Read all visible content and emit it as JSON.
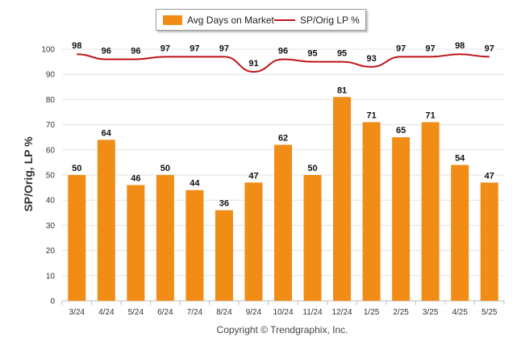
{
  "chart_data": {
    "type": "bar",
    "categories": [
      "3/24",
      "4/24",
      "5/24",
      "6/24",
      "7/24",
      "8/24",
      "9/24",
      "10/24",
      "11/24",
      "12/24",
      "1/25",
      "2/25",
      "3/25",
      "4/25",
      "5/25"
    ],
    "series": [
      {
        "name": "Avg Days on Market",
        "type": "bar",
        "color": "#f18c17",
        "values": [
          50,
          64,
          46,
          50,
          44,
          36,
          47,
          62,
          50,
          81,
          71,
          65,
          71,
          54,
          47
        ]
      },
      {
        "name": "SP/Orig LP %",
        "type": "line",
        "color": "#c0141a",
        "values": [
          98,
          96,
          96,
          97,
          97,
          97,
          91,
          96,
          95,
          95,
          93,
          97,
          97,
          98,
          97
        ]
      }
    ],
    "ylabel": "SP/Orig, LP %",
    "ylim": [
      0,
      100
    ],
    "yticks": [
      0,
      10,
      20,
      30,
      40,
      50,
      60,
      70,
      80,
      90,
      100
    ],
    "grid": true,
    "legend_position": "top-center",
    "data_labels": true
  },
  "footer": {
    "copyright": "Copyright © Trendgraphix, Inc."
  }
}
